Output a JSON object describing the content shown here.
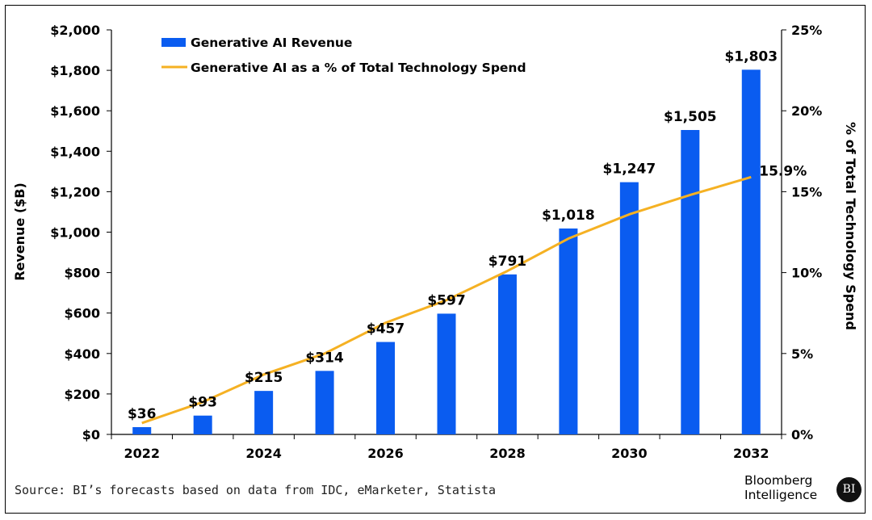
{
  "chart_data": {
    "type": "bar",
    "categories": [
      "2022",
      "2023",
      "2024",
      "2025",
      "2026",
      "2027",
      "2028",
      "2029",
      "2030",
      "2031",
      "2032"
    ],
    "series": [
      {
        "name": "Generative AI Revenue",
        "type": "bar",
        "axis": "left",
        "values": [
          36,
          93,
          215,
          314,
          457,
          597,
          791,
          1018,
          1247,
          1505,
          1803
        ],
        "labels": [
          "$36",
          "$93",
          "$215",
          "$314",
          "$457",
          "$597",
          "$791",
          "$1,018",
          "$1,247",
          "$1,505",
          "$1,803"
        ],
        "color": "#0a5cf0"
      },
      {
        "name": "Generative AI as a % of Total Technology Spend",
        "type": "line",
        "axis": "right",
        "values": [
          0.7,
          2.0,
          3.7,
          5.0,
          6.9,
          8.3,
          10.1,
          12.1,
          13.6,
          14.8,
          15.9
        ],
        "end_label": "15.9%",
        "color": "#f5b123"
      }
    ],
    "x_tick_labels": [
      "2022",
      "",
      "2024",
      "",
      "2026",
      "",
      "2028",
      "",
      "2030",
      "",
      "2032"
    ],
    "ylabel": "Revenue ($B)",
    "ylim": [
      0,
      2000
    ],
    "y_ticks": [
      0,
      200,
      400,
      600,
      800,
      1000,
      1200,
      1400,
      1600,
      1800,
      2000
    ],
    "y_tick_labels": [
      "$0",
      "$200",
      "$400",
      "$600",
      "$800",
      "$1,000",
      "$1,200",
      "$1,400",
      "$1,600",
      "$1,800",
      "$2,000"
    ],
    "y2label": "% of Total Technology Spend",
    "y2lim": [
      0,
      25
    ],
    "y2_ticks": [
      0,
      5,
      10,
      15,
      20,
      25
    ],
    "y2_tick_labels": [
      "0%",
      "5%",
      "10%",
      "15%",
      "20%",
      "25%"
    ],
    "grid": false,
    "legend_position": "top-left"
  },
  "footer": {
    "source": "Source: BI’s forecasts based on data from IDC, eMarketer, Statista",
    "brand_line1": "Bloomberg",
    "brand_line2": "Intelligence",
    "brand_badge": "BI"
  }
}
